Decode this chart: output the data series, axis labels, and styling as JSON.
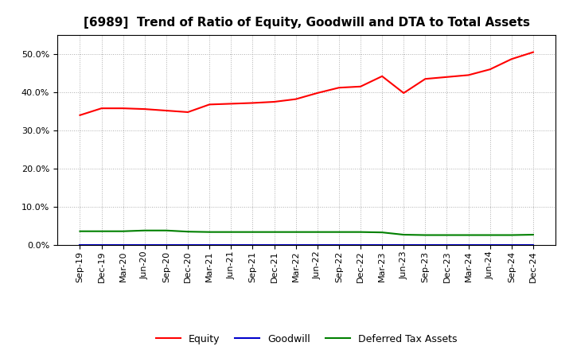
{
  "title": "[6989]  Trend of Ratio of Equity, Goodwill and DTA to Total Assets",
  "x_labels": [
    "Sep-19",
    "Dec-19",
    "Mar-20",
    "Jun-20",
    "Sep-20",
    "Dec-20",
    "Mar-21",
    "Jun-21",
    "Sep-21",
    "Dec-21",
    "Mar-22",
    "Jun-22",
    "Sep-22",
    "Dec-22",
    "Mar-23",
    "Jun-23",
    "Sep-23",
    "Dec-23",
    "Mar-24",
    "Jun-24",
    "Sep-24",
    "Dec-24"
  ],
  "equity": [
    0.34,
    0.358,
    0.358,
    0.356,
    0.352,
    0.348,
    0.368,
    0.37,
    0.372,
    0.375,
    0.382,
    0.398,
    0.412,
    0.415,
    0.442,
    0.398,
    0.435,
    0.44,
    0.445,
    0.46,
    0.487,
    0.505
  ],
  "goodwill": [
    0.0,
    0.0,
    0.0,
    0.0,
    0.0,
    0.0,
    0.0,
    0.0,
    0.0,
    0.0,
    0.0,
    0.0,
    0.0,
    0.0,
    0.0,
    0.0,
    0.0,
    0.0,
    0.0,
    0.0,
    0.0,
    0.0
  ],
  "dta": [
    0.036,
    0.036,
    0.036,
    0.038,
    0.038,
    0.035,
    0.034,
    0.034,
    0.034,
    0.034,
    0.034,
    0.034,
    0.034,
    0.034,
    0.033,
    0.027,
    0.026,
    0.026,
    0.026,
    0.026,
    0.026,
    0.027
  ],
  "equity_color": "#ff0000",
  "goodwill_color": "#0000cc",
  "dta_color": "#008000",
  "background_color": "#ffffff",
  "grid_color": "#999999",
  "ylim": [
    0.0,
    0.55
  ],
  "yticks": [
    0.0,
    0.1,
    0.2,
    0.3,
    0.4,
    0.5
  ],
  "legend_labels": [
    "Equity",
    "Goodwill",
    "Deferred Tax Assets"
  ],
  "title_fontsize": 11,
  "tick_fontsize": 8
}
